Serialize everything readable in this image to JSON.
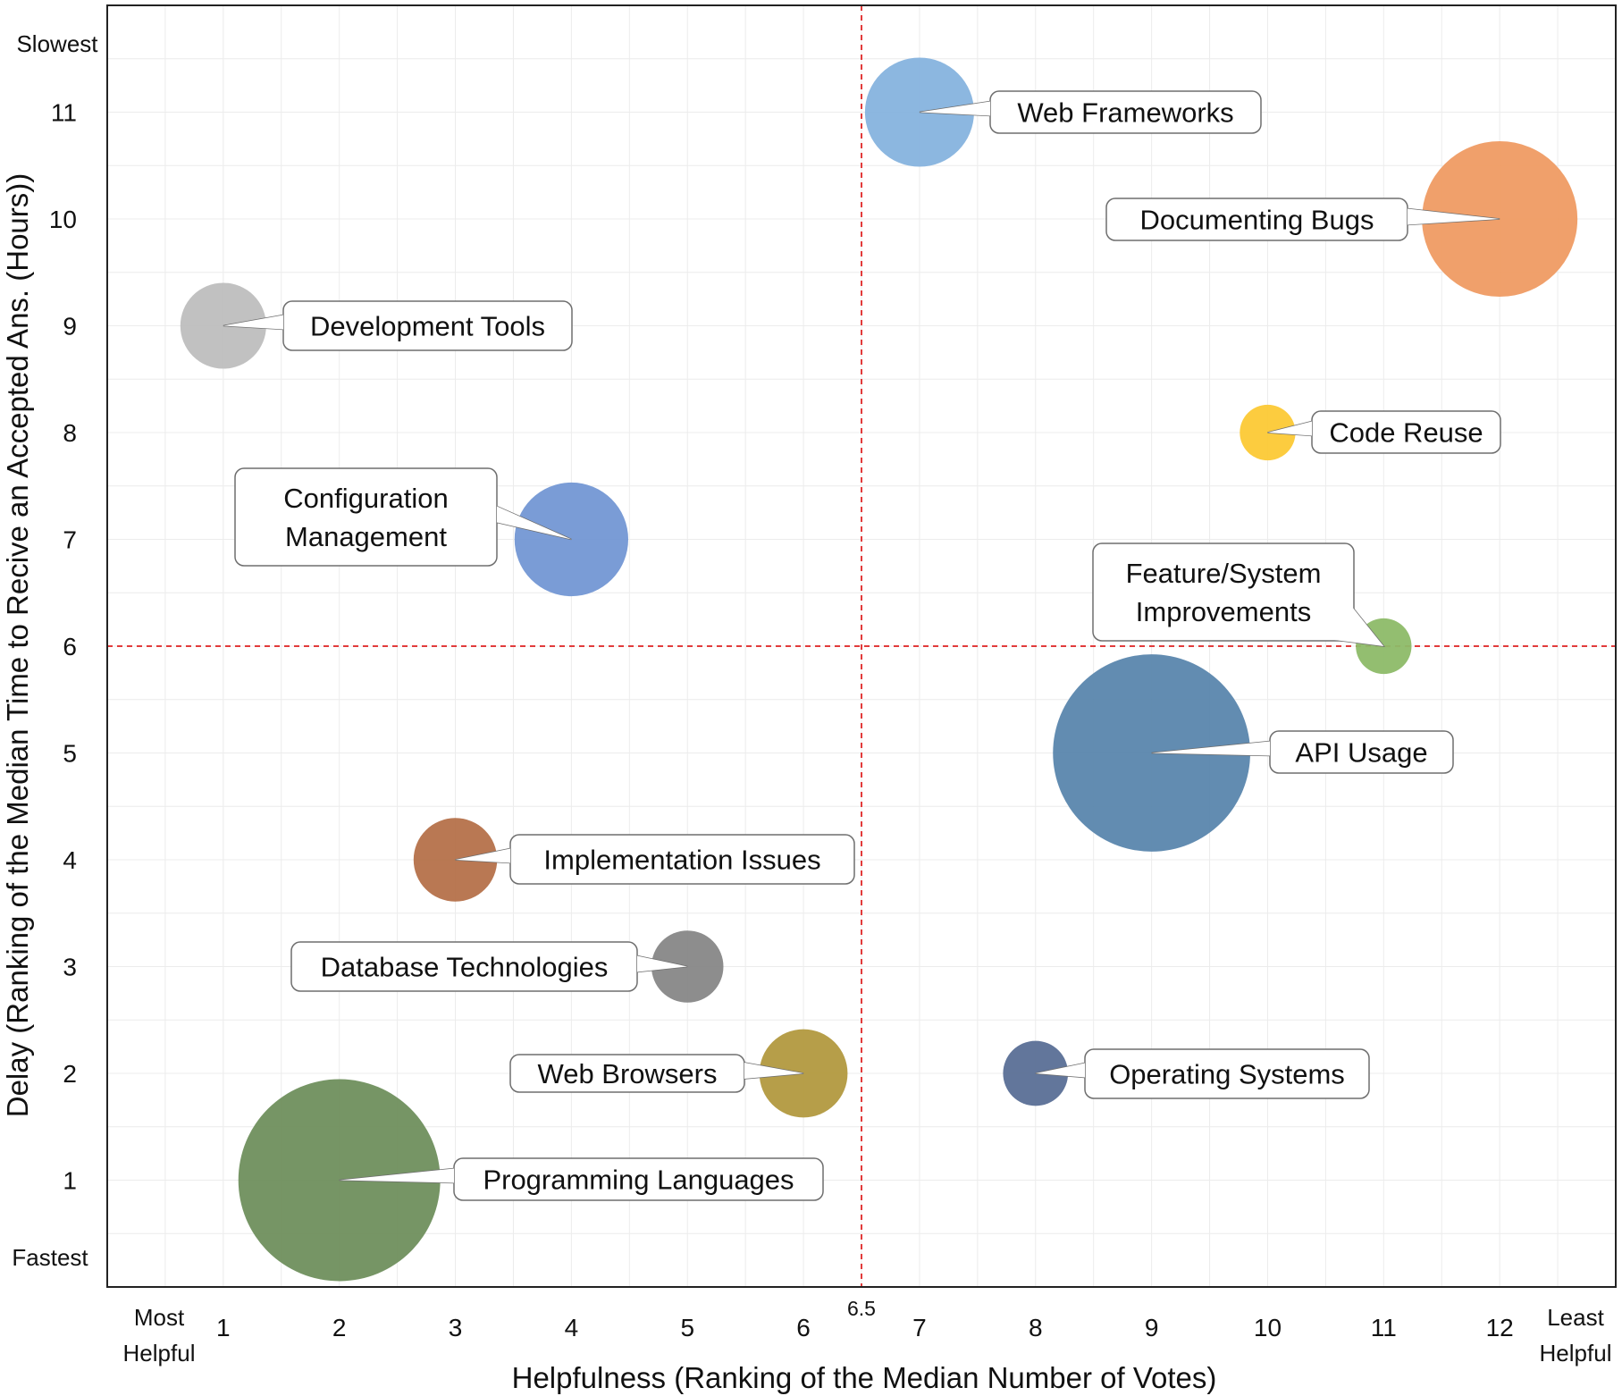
{
  "chart_data": {
    "type": "bubble",
    "title": "",
    "xlabel": "Helpfulness (Ranking of the Median Number of Votes)",
    "ylabel": "Delay (Ranking of the Median Time to Recive an Accepted Ans. (Hours))",
    "xlim": [
      0,
      13
    ],
    "ylim": [
      0,
      12
    ],
    "x_ticks": [
      1,
      2,
      3,
      4,
      5,
      6,
      7,
      8,
      9,
      10,
      11,
      12
    ],
    "y_ticks": [
      1,
      2,
      3,
      4,
      5,
      6,
      7,
      8,
      9,
      10,
      11
    ],
    "x_extremes": {
      "low": "Most Helpful",
      "high": "Least Helpful"
    },
    "y_extremes": {
      "low": "Fastest",
      "high": "Slowest"
    },
    "reference_lines": {
      "x": 6.5,
      "y": 6,
      "x_label": "6.5",
      "color": "#e23b3b",
      "style": "dashed"
    },
    "grid": true,
    "points": [
      {
        "label": "Web Frameworks",
        "x": 7,
        "y": 11,
        "size": 47,
        "color": "#86b3de"
      },
      {
        "label": "Documenting Bugs",
        "x": 12,
        "y": 10,
        "size": 67,
        "color": "#ef9b63"
      },
      {
        "label": "Development Tools",
        "x": 1,
        "y": 9,
        "size": 37,
        "color": "#bebebe"
      },
      {
        "label": "Code Reuse",
        "x": 10,
        "y": 8,
        "size": 24,
        "color": "#fcc935"
      },
      {
        "label": "Configuration Management",
        "x": 4,
        "y": 7,
        "size": 49,
        "color": "#7397d4"
      },
      {
        "label": "Feature/System Improvements",
        "x": 11,
        "y": 6,
        "size": 24,
        "color": "#8dbb68"
      },
      {
        "label": "API Usage",
        "x": 9,
        "y": 5,
        "size": 85,
        "color": "#5a86ad"
      },
      {
        "label": "Implementation Issues",
        "x": 3,
        "y": 4,
        "size": 36,
        "color": "#b5714a"
      },
      {
        "label": "Database Technologies",
        "x": 5,
        "y": 3,
        "size": 31,
        "color": "#878787"
      },
      {
        "label": "Web Browsers",
        "x": 6,
        "y": 2,
        "size": 38,
        "color": "#b2993f"
      },
      {
        "label": "Operating Systems",
        "x": 8,
        "y": 2,
        "size": 28,
        "color": "#5a6f96"
      },
      {
        "label": "Programming Languages",
        "x": 2,
        "y": 1,
        "size": 87,
        "color": "#6f8f5d"
      }
    ],
    "callouts": [
      {
        "lines": [
          "Web Frameworks"
        ],
        "side": "right"
      },
      {
        "lines": [
          "Documenting Bugs"
        ],
        "side": "left"
      },
      {
        "lines": [
          "Development Tools"
        ],
        "side": "right"
      },
      {
        "lines": [
          "Code Reuse"
        ],
        "side": "right"
      },
      {
        "lines": [
          "Configuration",
          "Management"
        ],
        "side": "left"
      },
      {
        "lines": [
          "Feature/System",
          "Improvements"
        ],
        "side": "upper-left"
      },
      {
        "lines": [
          "API Usage"
        ],
        "side": "right"
      },
      {
        "lines": [
          "Implementation Issues"
        ],
        "side": "right"
      },
      {
        "lines": [
          "Database Technologies"
        ],
        "side": "left"
      },
      {
        "lines": [
          "Web Browsers"
        ],
        "side": "left"
      },
      {
        "lines": [
          "Operating Systems"
        ],
        "side": "right"
      },
      {
        "lines": [
          "Programming Languages"
        ],
        "side": "right"
      }
    ]
  }
}
